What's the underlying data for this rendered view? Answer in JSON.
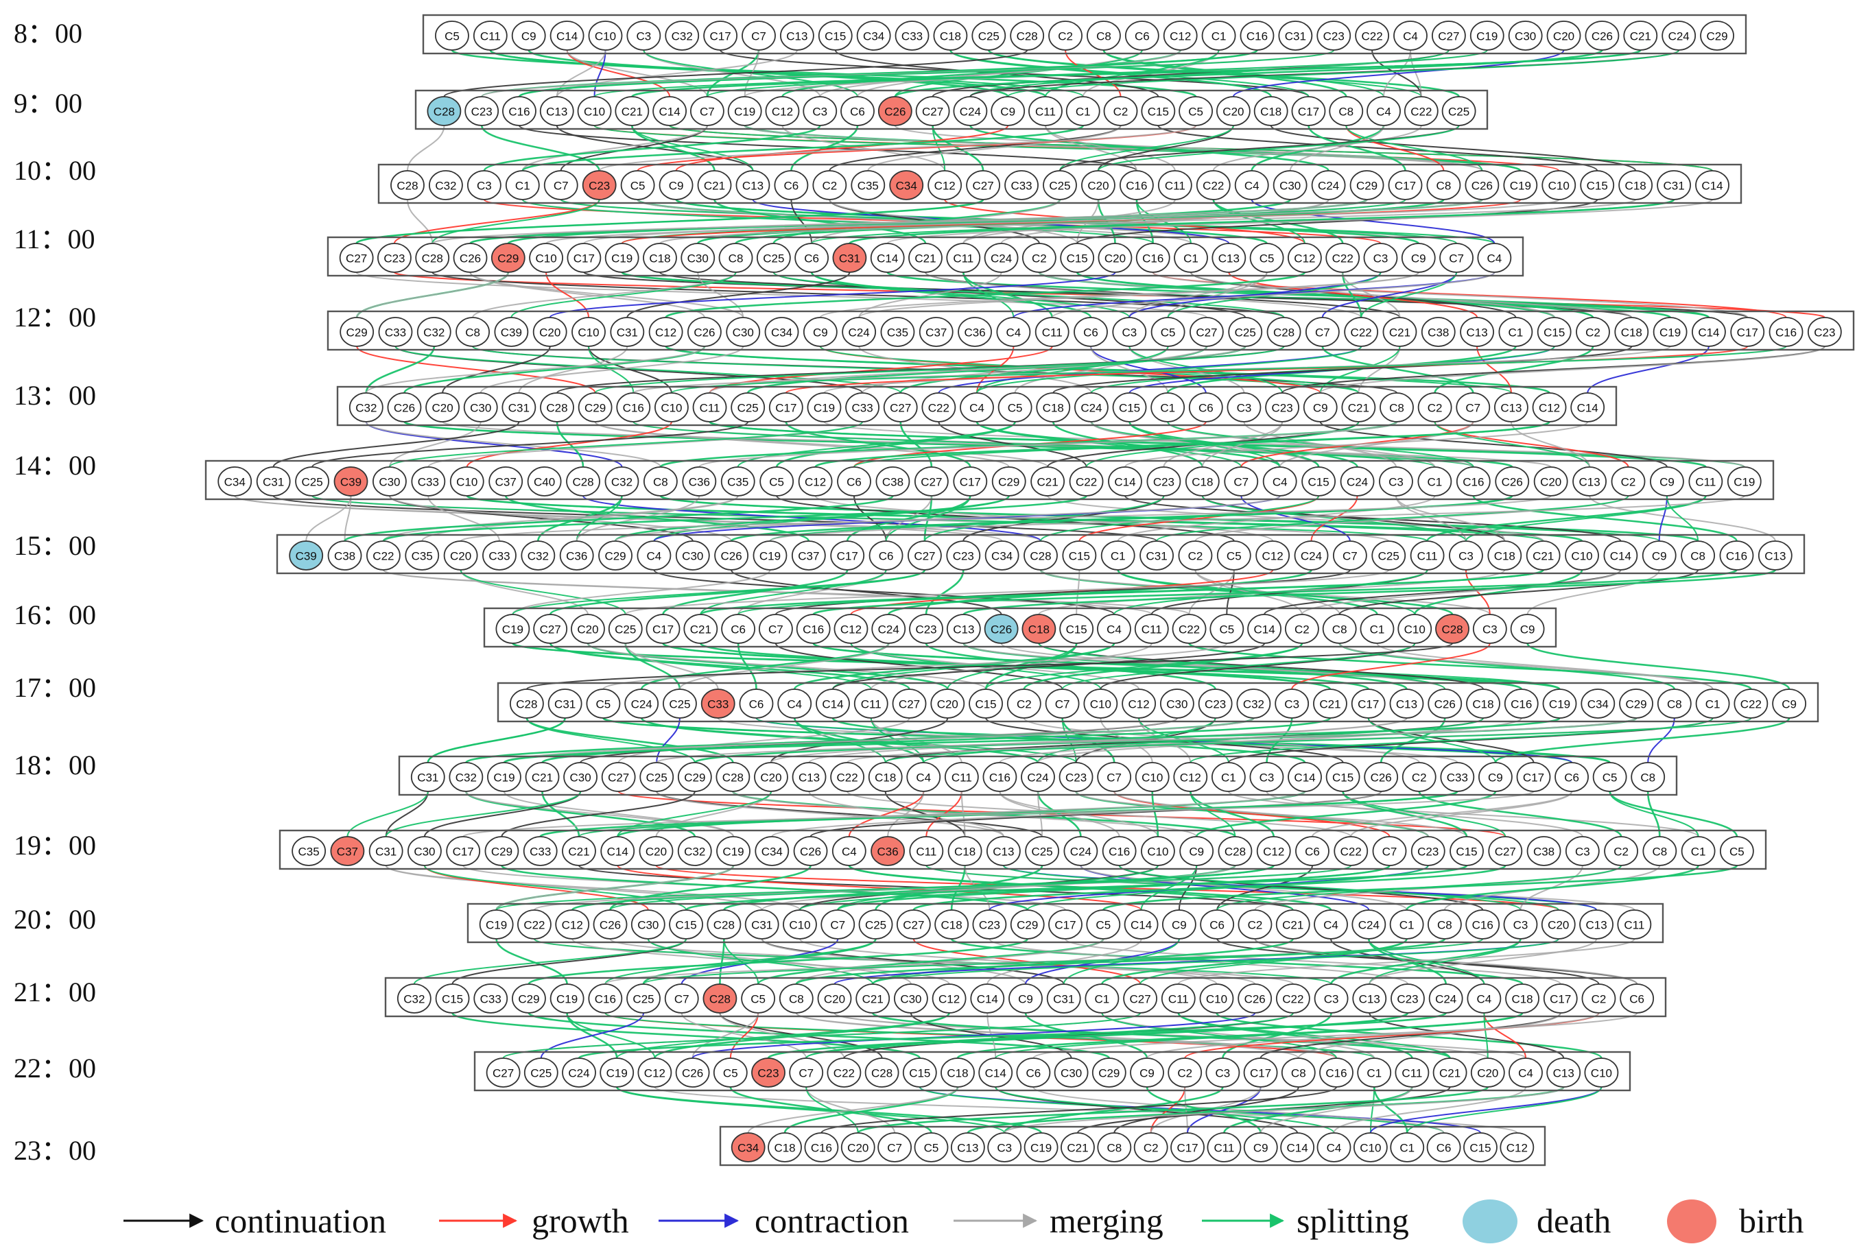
{
  "diagram": {
    "colors": {
      "continuation": "#3a3a3a",
      "growth": "#ff3b30",
      "contraction": "#2d2dd6",
      "merging": "#a8a8a8",
      "splitting": "#19c36b",
      "death": "#8fd0e0",
      "birth": "#f47a6e",
      "normal": "#ffffff"
    },
    "rows": [
      {
        "time": "8：00",
        "nodes": [
          "C5",
          "C11",
          "C9",
          "C14",
          "C10",
          "C3",
          "C32",
          "C17",
          "C7",
          "C13",
          "C15",
          "C34",
          "C33",
          "C18",
          "C25",
          "C28",
          "C2",
          "C8",
          "C6",
          "C12",
          "C1",
          "C16",
          "C31",
          "C23",
          "C22",
          "C4",
          "C27",
          "C19",
          "C30",
          "C20",
          "C26",
          "C21",
          "C24",
          "C29"
        ],
        "births": [],
        "deaths": []
      },
      {
        "time": "9：00",
        "nodes": [
          "C28",
          "C23",
          "C16",
          "C13",
          "C10",
          "C21",
          "C14",
          "C7",
          "C19",
          "C12",
          "C3",
          "C6",
          "C26",
          "C27",
          "C24",
          "C9",
          "C11",
          "C1",
          "C2",
          "C15",
          "C5",
          "C20",
          "C18",
          "C17",
          "C8",
          "C4",
          "C22",
          "C25"
        ],
        "births": [
          12
        ],
        "deaths": [
          0
        ]
      },
      {
        "time": "10：00",
        "nodes": [
          "C28",
          "C32",
          "C3",
          "C1",
          "C7",
          "C23",
          "C5",
          "C9",
          "C21",
          "C13",
          "C6",
          "C2",
          "C35",
          "C34",
          "C12",
          "C27",
          "C33",
          "C25",
          "C20",
          "C16",
          "C11",
          "C22",
          "C4",
          "C30",
          "C24",
          "C29",
          "C17",
          "C8",
          "C26",
          "C19",
          "C10",
          "C15",
          "C18",
          "C31",
          "C14"
        ],
        "births": [
          5,
          13
        ],
        "deaths": []
      },
      {
        "time": "11：00",
        "nodes": [
          "C27",
          "C23",
          "C28",
          "C26",
          "C29",
          "C10",
          "C17",
          "C19",
          "C18",
          "C30",
          "C8",
          "C25",
          "C6",
          "C31",
          "C14",
          "C21",
          "C11",
          "C24",
          "C2",
          "C15",
          "C20",
          "C16",
          "C1",
          "C13",
          "C5",
          "C12",
          "C22",
          "C3",
          "C9",
          "C7",
          "C4"
        ],
        "births": [
          4,
          13
        ],
        "deaths": []
      },
      {
        "time": "12：00",
        "nodes": [
          "C29",
          "C33",
          "C32",
          "C8",
          "C39",
          "C20",
          "C10",
          "C31",
          "C12",
          "C26",
          "C30",
          "C34",
          "C9",
          "C24",
          "C35",
          "C37",
          "C36",
          "C4",
          "C11",
          "C6",
          "C3",
          "C5",
          "C27",
          "C25",
          "C28",
          "C7",
          "C22",
          "C21",
          "C38",
          "C13",
          "C1",
          "C15",
          "C2",
          "C18",
          "C19",
          "C14",
          "C17",
          "C16",
          "C23"
        ],
        "births": [],
        "deaths": []
      },
      {
        "time": "13：00",
        "nodes": [
          "C32",
          "C26",
          "C20",
          "C30",
          "C31",
          "C28",
          "C29",
          "C16",
          "C10",
          "C11",
          "C25",
          "C17",
          "C19",
          "C33",
          "C27",
          "C22",
          "C4",
          "C5",
          "C18",
          "C24",
          "C15",
          "C1",
          "C6",
          "C3",
          "C23",
          "C9",
          "C21",
          "C8",
          "C2",
          "C7",
          "C13",
          "C12",
          "C14"
        ],
        "births": [],
        "deaths": []
      },
      {
        "time": "14：00",
        "nodes": [
          "C34",
          "C31",
          "C25",
          "C39",
          "C30",
          "C33",
          "C10",
          "C37",
          "C40",
          "C28",
          "C32",
          "C8",
          "C36",
          "C35",
          "C5",
          "C12",
          "C6",
          "C38",
          "C27",
          "C17",
          "C29",
          "C21",
          "C22",
          "C14",
          "C23",
          "C18",
          "C7",
          "C4",
          "C15",
          "C24",
          "C3",
          "C1",
          "C16",
          "C26",
          "C20",
          "C13",
          "C2",
          "C9",
          "C11",
          "C19"
        ],
        "births": [
          3
        ],
        "deaths": []
      },
      {
        "time": "15：00",
        "nodes": [
          "C39",
          "C38",
          "C22",
          "C35",
          "C20",
          "C33",
          "C32",
          "C36",
          "C29",
          "C4",
          "C30",
          "C26",
          "C19",
          "C37",
          "C17",
          "C6",
          "C27",
          "C23",
          "C34",
          "C28",
          "C15",
          "C1",
          "C31",
          "C2",
          "C5",
          "C12",
          "C24",
          "C7",
          "C25",
          "C11",
          "C3",
          "C18",
          "C21",
          "C10",
          "C14",
          "C9",
          "C8",
          "C16",
          "C13"
        ],
        "births": [],
        "deaths": [
          0
        ]
      },
      {
        "time": "16：00",
        "nodes": [
          "C19",
          "C27",
          "C20",
          "C25",
          "C17",
          "C21",
          "C6",
          "C7",
          "C16",
          "C12",
          "C24",
          "C23",
          "C13",
          "C26",
          "C18",
          "C15",
          "C4",
          "C11",
          "C22",
          "C5",
          "C14",
          "C2",
          "C8",
          "C1",
          "C10",
          "C28",
          "C3",
          "C9"
        ],
        "births": [
          14,
          25
        ],
        "deaths": [
          13
        ]
      },
      {
        "time": "17：00",
        "nodes": [
          "C28",
          "C31",
          "C5",
          "C24",
          "C25",
          "C33",
          "C6",
          "C4",
          "C14",
          "C11",
          "C27",
          "C20",
          "C15",
          "C2",
          "C7",
          "C10",
          "C12",
          "C30",
          "C23",
          "C32",
          "C3",
          "C21",
          "C17",
          "C13",
          "C26",
          "C18",
          "C16",
          "C19",
          "C34",
          "C29",
          "C8",
          "C1",
          "C22",
          "C9"
        ],
        "births": [
          5
        ],
        "deaths": []
      },
      {
        "time": "18：00",
        "nodes": [
          "C31",
          "C32",
          "C19",
          "C21",
          "C30",
          "C27",
          "C25",
          "C29",
          "C28",
          "C20",
          "C13",
          "C22",
          "C18",
          "C4",
          "C11",
          "C16",
          "C24",
          "C23",
          "C7",
          "C10",
          "C12",
          "C1",
          "C3",
          "C14",
          "C15",
          "C26",
          "C2",
          "C33",
          "C9",
          "C17",
          "C6",
          "C5",
          "C8"
        ],
        "births": [],
        "deaths": []
      },
      {
        "time": "19：00",
        "nodes": [
          "C35",
          "C37",
          "C31",
          "C30",
          "C17",
          "C29",
          "C33",
          "C21",
          "C14",
          "C20",
          "C32",
          "C19",
          "C34",
          "C26",
          "C4",
          "C36",
          "C11",
          "C18",
          "C13",
          "C25",
          "C24",
          "C16",
          "C10",
          "C9",
          "C28",
          "C12",
          "C6",
          "C22",
          "C7",
          "C23",
          "C15",
          "C27",
          "C38",
          "C3",
          "C2",
          "C8",
          "C1",
          "C5"
        ],
        "births": [
          1,
          15
        ],
        "deaths": []
      },
      {
        "time": "20：00",
        "nodes": [
          "C19",
          "C22",
          "C12",
          "C26",
          "C30",
          "C15",
          "C28",
          "C31",
          "C10",
          "C7",
          "C25",
          "C27",
          "C18",
          "C23",
          "C29",
          "C17",
          "C5",
          "C14",
          "C9",
          "C6",
          "C2",
          "C21",
          "C4",
          "C24",
          "C1",
          "C8",
          "C16",
          "C3",
          "C20",
          "C13",
          "C11"
        ],
        "births": [],
        "deaths": []
      },
      {
        "time": "21：00",
        "nodes": [
          "C32",
          "C15",
          "C33",
          "C29",
          "C19",
          "C16",
          "C25",
          "C7",
          "C28",
          "C5",
          "C8",
          "C20",
          "C21",
          "C30",
          "C12",
          "C14",
          "C9",
          "C31",
          "C1",
          "C27",
          "C11",
          "C10",
          "C26",
          "C22",
          "C3",
          "C13",
          "C23",
          "C24",
          "C4",
          "C18",
          "C17",
          "C2",
          "C6"
        ],
        "births": [
          8
        ],
        "deaths": []
      },
      {
        "time": "22：00",
        "nodes": [
          "C27",
          "C25",
          "C24",
          "C19",
          "C12",
          "C26",
          "C5",
          "C23",
          "C7",
          "C22",
          "C28",
          "C15",
          "C18",
          "C14",
          "C6",
          "C30",
          "C29",
          "C9",
          "C2",
          "C3",
          "C17",
          "C8",
          "C16",
          "C1",
          "C11",
          "C21",
          "C20",
          "C4",
          "C13",
          "C10"
        ],
        "births": [
          7
        ],
        "deaths": []
      },
      {
        "time": "23：00",
        "nodes": [
          "C34",
          "C18",
          "C16",
          "C20",
          "C7",
          "C5",
          "C13",
          "C3",
          "C19",
          "C21",
          "C8",
          "C2",
          "C17",
          "C11",
          "C9",
          "C14",
          "C4",
          "C10",
          "C1",
          "C6",
          "C15",
          "C12"
        ],
        "births": [
          0
        ],
        "deaths": []
      }
    ]
  },
  "legend": {
    "continuation": "continuation",
    "growth": "growth",
    "contraction": "contraction",
    "merging": "merging",
    "splitting": "splitting",
    "death": "death",
    "birth": "birth"
  }
}
